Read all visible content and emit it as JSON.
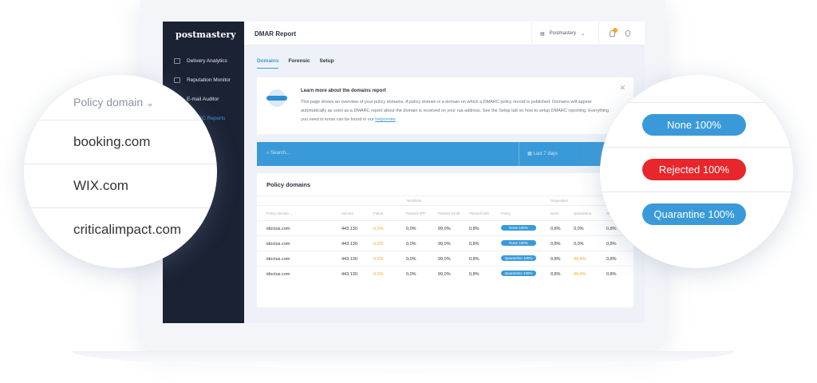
{
  "sidebar": {
    "logo": "postmastery",
    "items": [
      {
        "label": "Delivery Analytics"
      },
      {
        "label": "Reputation Monitor"
      },
      {
        "label": "E-mail Auditor"
      },
      {
        "label": "DMARC Reports"
      }
    ]
  },
  "header": {
    "title": "DMAR Report",
    "account": "Postmastery",
    "notification_count": "10"
  },
  "tabs": [
    {
      "label": "Domains",
      "active": true
    },
    {
      "label": "Forensic"
    },
    {
      "label": "Setup"
    }
  ],
  "info": {
    "title": "Learn more about the domains report",
    "text": "This page shows an overview of your policy domains. A policy domain is a domain on which a DMARC policy record is published. Domains will appear automatically as soon as a DMARC report about the domain is received on your rua address. See the Setup tab on how to setup DMARC reporting. Everything you need to know can be found in our ",
    "link": "helpcenter",
    "end": "."
  },
  "search": {
    "placeholder": "Search...",
    "date_range": "Last 7 days"
  },
  "table": {
    "title": "Policy domains",
    "groups": [
      "Worklists",
      "Disposition"
    ],
    "columns": [
      "Policy domain ⌄",
      "Volume",
      "Failed",
      "Passed SPF",
      "Passed DKIM",
      "Passed both",
      "Policy",
      "None",
      "Quarantine",
      "Re"
    ],
    "rows": [
      [
        "idoctus.com",
        "443.130",
        "0,2%",
        "0,0%",
        "99,0%",
        "0,8%",
        "None 100%",
        "0,8%",
        "0,0%",
        "0,8%"
      ],
      [
        "idoctus.com",
        "443.130",
        "0,2%",
        "0,0%",
        "99,0%",
        "0,8%",
        "None 100%",
        "0,8%",
        "0,0%",
        "0,8%"
      ],
      [
        "idoctus.com",
        "443.130",
        "0,2%",
        "0,0%",
        "99,0%",
        "0,8%",
        "Quarantine 100%",
        "0,8%",
        "99,4%",
        "0,8%"
      ],
      [
        "idoctus.com",
        "443.130",
        "0,2%",
        "0,0%",
        "99,0%",
        "0,8%",
        "Quarantine 100%",
        "0,8%",
        "99,4%",
        "0,8%"
      ]
    ]
  },
  "zoom_left": {
    "header": "Policy domain",
    "items": [
      "booking.com",
      "WIX.com",
      "criticalimpact.com"
    ]
  },
  "zoom_right": {
    "items": [
      {
        "label": "None 100%",
        "color": "#3a9ad9"
      },
      {
        "label": "Rejected 100%",
        "color": "#e8262b"
      },
      {
        "label": "Quarantine 100%",
        "color": "#3a9ad9"
      }
    ]
  },
  "colors": {
    "accent": "#3a9ad9",
    "sidebar": "#1a2233",
    "warning": "#f5a623",
    "danger": "#e8262b"
  }
}
